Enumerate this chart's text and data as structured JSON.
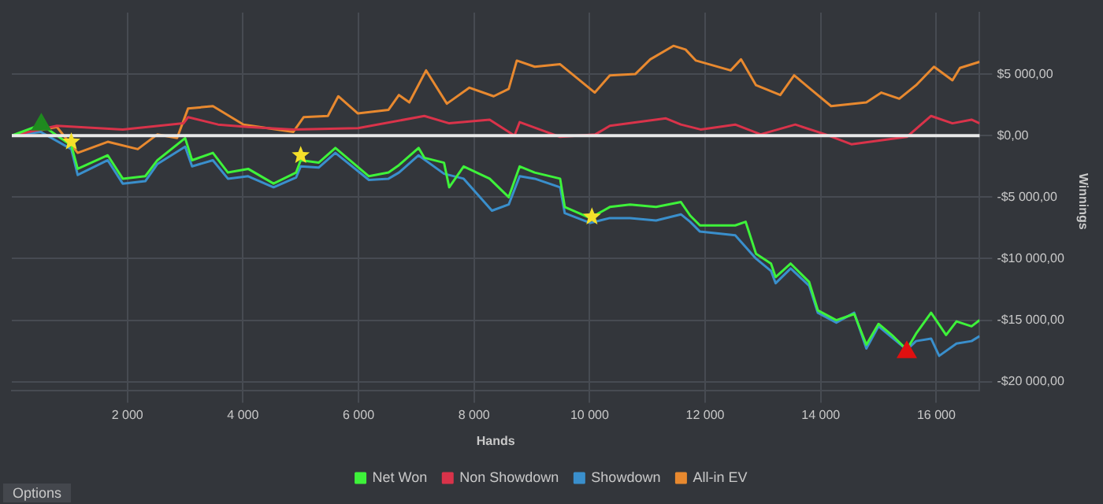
{
  "chart_data": {
    "type": "line",
    "xlabel": "Hands",
    "ylabel": "Winnings",
    "xlim": [
      0,
      16750
    ],
    "ylim": [
      -20700,
      10000
    ],
    "xticks": [
      {
        "value": 2000,
        "label": "2 000"
      },
      {
        "value": 4000,
        "label": "4 000"
      },
      {
        "value": 6000,
        "label": "6 000"
      },
      {
        "value": 8000,
        "label": "8 000"
      },
      {
        "value": 10000,
        "label": "10 000"
      },
      {
        "value": 12000,
        "label": "12 000"
      },
      {
        "value": 14000,
        "label": "14 000"
      },
      {
        "value": 16000,
        "label": "16 000"
      }
    ],
    "yticks": [
      {
        "value": -20000,
        "label": "-$20 000,00"
      },
      {
        "value": -15000,
        "label": "-$15 000,00"
      },
      {
        "value": -10000,
        "label": "-$10 000,00"
      },
      {
        "value": -5000,
        "label": "-$5 000,00"
      },
      {
        "value": 0,
        "label": "$0,00"
      },
      {
        "value": 5000,
        "label": "$5 000,00"
      }
    ],
    "grid": true,
    "legend": "bottom",
    "marker": "none",
    "ref_lines": [
      {
        "axis": "y",
        "value": 0,
        "color": "#e8e8e8"
      }
    ],
    "annotations": [
      "Options"
    ],
    "series": [
      {
        "name": "Net Won",
        "color": "#3ef23a",
        "x": [
          0,
          510,
          1030,
          1140,
          1660,
          1920,
          2310,
          2520,
          3000,
          3120,
          3480,
          3740,
          4090,
          4530,
          4920,
          5000,
          5310,
          5600,
          6180,
          6520,
          6700,
          7040,
          7140,
          7480,
          7570,
          7820,
          8270,
          8600,
          8790,
          9050,
          9490,
          9570,
          10010,
          10350,
          10700,
          11150,
          11580,
          11740,
          11910,
          12520,
          12700,
          12880,
          13140,
          13220,
          13480,
          13800,
          13950,
          14270,
          14580,
          14790,
          15000,
          15230,
          15490,
          15650,
          15910,
          16170,
          16350,
          16610,
          16750
        ],
        "values": [
          0,
          900,
          -800,
          -2700,
          -1600,
          -3500,
          -3300,
          -2000,
          -200,
          -2000,
          -1400,
          -3000,
          -2700,
          -3900,
          -3000,
          -2000,
          -2200,
          -1000,
          -3300,
          -3000,
          -2400,
          -1000,
          -1800,
          -2200,
          -4200,
          -2500,
          -3500,
          -5000,
          -2500,
          -3000,
          -3500,
          -5800,
          -6700,
          -5800,
          -5600,
          -5800,
          -5400,
          -6500,
          -7300,
          -7300,
          -7000,
          -9600,
          -10400,
          -11500,
          -10400,
          -11900,
          -14200,
          -15000,
          -14500,
          -17000,
          -15300,
          -16200,
          -17400,
          -16100,
          -14400,
          -16200,
          -15100,
          -15500,
          -15000
        ]
      },
      {
        "name": "Non Showdown",
        "color": "#d9334a",
        "x": [
          0,
          780,
          1920,
          2970,
          3050,
          3570,
          4090,
          4870,
          5990,
          7140,
          7570,
          8270,
          8600,
          8700,
          8790,
          9490,
          10100,
          10350,
          11320,
          11580,
          11920,
          12520,
          12960,
          13560,
          14080,
          14530,
          15490,
          15910,
          16280,
          16610,
          16750
        ],
        "values": [
          0,
          800,
          500,
          1000,
          1500,
          900,
          700,
          500,
          600,
          1600,
          1000,
          1300,
          300,
          0,
          1100,
          -100,
          100,
          800,
          1400,
          900,
          500,
          900,
          100,
          900,
          100,
          -700,
          -100,
          1600,
          1000,
          1300,
          1000
        ]
      },
      {
        "name": "Showdown",
        "color": "#3a8fcc",
        "x": [
          0,
          500,
          1030,
          1140,
          1660,
          1920,
          2310,
          2520,
          3000,
          3120,
          3480,
          3740,
          4090,
          4530,
          4920,
          5000,
          5310,
          5600,
          6180,
          6520,
          6700,
          7040,
          7480,
          7820,
          8310,
          8600,
          8790,
          9050,
          9490,
          9570,
          10010,
          10350,
          10700,
          11150,
          11580,
          11740,
          11910,
          12520,
          12880,
          13140,
          13220,
          13480,
          13800,
          13950,
          14270,
          14580,
          14790,
          15000,
          15230,
          15490,
          15650,
          15910,
          16050,
          16350,
          16610,
          16750
        ],
        "values": [
          0,
          300,
          -1100,
          -3200,
          -2000,
          -3900,
          -3700,
          -2300,
          -900,
          -2500,
          -2000,
          -3500,
          -3300,
          -4200,
          -3400,
          -2500,
          -2600,
          -1400,
          -3600,
          -3500,
          -3000,
          -1600,
          -3100,
          -3500,
          -6100,
          -5600,
          -3300,
          -3500,
          -4200,
          -6300,
          -7100,
          -6700,
          -6700,
          -6900,
          -6400,
          -7000,
          -7800,
          -8100,
          -10000,
          -11000,
          -12000,
          -10800,
          -12200,
          -14400,
          -15200,
          -14400,
          -17300,
          -15500,
          -16400,
          -17400,
          -16700,
          -16500,
          -17900,
          -16900,
          -16700,
          -16300
        ]
      },
      {
        "name": "All-in EV",
        "color": "#e8892f",
        "x": [
          0,
          780,
          1140,
          1660,
          2180,
          2520,
          2860,
          3050,
          3480,
          4010,
          4870,
          5050,
          5470,
          5650,
          5990,
          6520,
          6700,
          6880,
          7170,
          7530,
          7920,
          8340,
          8600,
          8740,
          9050,
          9490,
          10090,
          10350,
          10790,
          11050,
          11450,
          11660,
          11840,
          12440,
          12620,
          12880,
          13300,
          13540,
          13820,
          14180,
          14790,
          15050,
          15360,
          15650,
          15960,
          16280,
          16410,
          16750
        ],
        "values": [
          0,
          700,
          -1400,
          -500,
          -1100,
          100,
          -200,
          2200,
          2400,
          900,
          300,
          1500,
          1600,
          3200,
          1800,
          2100,
          3300,
          2700,
          5300,
          2600,
          3900,
          3200,
          3800,
          6100,
          5600,
          5800,
          3500,
          4900,
          5000,
          6200,
          7300,
          7000,
          6100,
          5300,
          6200,
          4100,
          3300,
          4900,
          3800,
          2400,
          2700,
          3500,
          3000,
          4100,
          5600,
          4500,
          5500,
          6000
        ]
      },
      {
        "type": "scatter",
        "marker": "star",
        "color": "#f5e02a",
        "x": [
          1030,
          5000,
          10040
        ],
        "values": [
          -500,
          -1600,
          -6600
        ]
      },
      {
        "type": "scatter",
        "marker": "triangle",
        "color": "#1f8a1f",
        "x": [
          510
        ],
        "values": [
          900
        ]
      },
      {
        "type": "scatter",
        "marker": "triangle",
        "color": "#e01010",
        "x": [
          15490
        ],
        "values": [
          -17600
        ]
      }
    ]
  }
}
